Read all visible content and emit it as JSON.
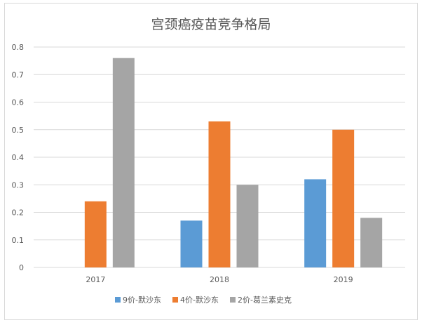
{
  "chart_data": {
    "type": "bar",
    "title": "宫颈癌疫苗竞争格局",
    "categories": [
      "2017",
      "2018",
      "2019"
    ],
    "series": [
      {
        "name": "9价-默沙东",
        "color": "#5b9bd5",
        "values": [
          0,
          0.17,
          0.32
        ]
      },
      {
        "name": "4价-默沙东",
        "color": "#ed7d31",
        "values": [
          0.24,
          0.53,
          0.5
        ]
      },
      {
        "name": "2价-葛兰素史克",
        "color": "#a5a5a5",
        "values": [
          0.76,
          0.3,
          0.18
        ]
      }
    ],
    "ylim": [
      0,
      0.8
    ],
    "yticks": [
      "0",
      "0.1",
      "0.2",
      "0.3",
      "0.4",
      "0.5",
      "0.6",
      "0.7",
      "0.8"
    ],
    "grid": true,
    "legend_position": "bottom"
  }
}
